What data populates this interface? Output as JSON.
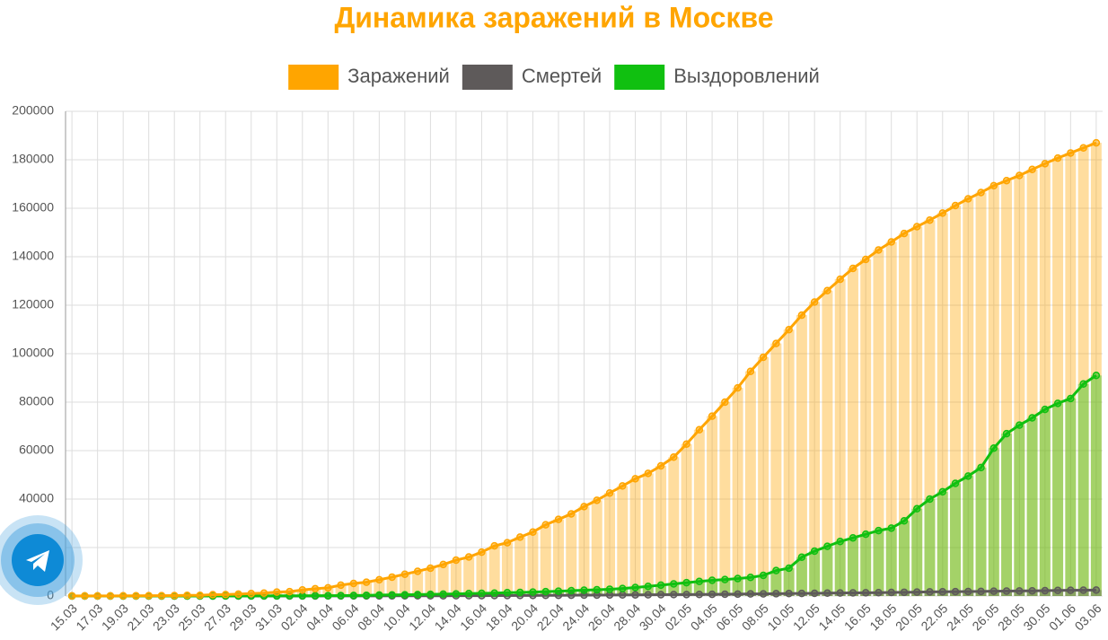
{
  "chart_data": {
    "type": "bar-line",
    "title": "Динамика заражений в Москве",
    "categories": [
      "15.03",
      null,
      "17.03",
      null,
      "19.03",
      null,
      "21.03",
      null,
      "23.03",
      null,
      "25.03",
      null,
      "27.03",
      null,
      "29.03",
      null,
      "31.03",
      null,
      "02.04",
      null,
      "04.04",
      null,
      "06.04",
      null,
      "08.04",
      null,
      "10.04",
      null,
      "12.04",
      null,
      "14.04",
      null,
      "16.04",
      null,
      "18.04",
      null,
      "20.04",
      null,
      "22.04",
      null,
      "24.04",
      null,
      "26.04",
      null,
      "28.04",
      null,
      "30.04",
      null,
      "02.05",
      null,
      "04.05",
      null,
      "06.05",
      null,
      "08.05",
      null,
      "10.05",
      null,
      "12.05",
      null,
      "14.05",
      null,
      "16.05",
      null,
      "18.05",
      null,
      "20.05",
      null,
      "22.05",
      null,
      "24.05",
      null,
      "26.05",
      null,
      "28.05",
      null,
      "30.05",
      null,
      "01.06",
      null,
      "03.06"
    ],
    "series": [
      {
        "name": "Заражений",
        "color": "#ffa500",
        "values": [
          30,
          40,
          50,
          60,
          80,
          100,
          140,
          140,
          190,
          260,
          290,
          550,
          600,
          800,
          1000,
          1200,
          1600,
          1800,
          2500,
          3000,
          3400,
          4500,
          5200,
          5700,
          6700,
          7800,
          9000,
          10200,
          11500,
          13000,
          14800,
          16100,
          18100,
          20700,
          22000,
          24300,
          26400,
          29400,
          31600,
          33900,
          36900,
          39500,
          42500,
          45400,
          48400,
          50600,
          53700,
          57300,
          62700,
          68600,
          74200,
          80000,
          85900,
          92700,
          98500,
          104200,
          109900,
          115900,
          121300,
          126000,
          130700,
          135200,
          138900,
          142800,
          146100,
          149600,
          152400,
          155100,
          158000,
          161100,
          163900,
          166500,
          169300,
          171400,
          173500,
          176000,
          178400,
          180700,
          182800,
          184900,
          187000
        ]
      },
      {
        "name": "Смертей",
        "color": "#5e5a5a",
        "values": [
          0,
          0,
          0,
          0,
          0,
          0,
          0,
          0,
          0,
          0,
          0,
          0,
          0,
          0,
          10,
          10,
          10,
          10,
          20,
          20,
          30,
          30,
          40,
          50,
          60,
          70,
          80,
          100,
          100,
          100,
          120,
          130,
          150,
          170,
          200,
          220,
          250,
          270,
          300,
          330,
          360,
          390,
          420,
          450,
          480,
          510,
          550,
          600,
          620,
          650,
          700,
          750,
          800,
          860,
          900,
          950,
          1000,
          1060,
          1120,
          1200,
          1230,
          1300,
          1360,
          1400,
          1500,
          1550,
          1600,
          1700,
          1750,
          1800,
          1850,
          1900,
          2000,
          2050,
          2100,
          2150,
          2200,
          2300,
          2350,
          2400,
          2450
        ]
      },
      {
        "name": "Выздоровлений",
        "color": "#10c010",
        "values": [
          0,
          0,
          0,
          0,
          0,
          0,
          10,
          10,
          10,
          20,
          20,
          20,
          30,
          40,
          50,
          60,
          70,
          80,
          100,
          120,
          150,
          200,
          250,
          300,
          400,
          450,
          500,
          600,
          700,
          800,
          900,
          1000,
          1100,
          1200,
          1400,
          1500,
          1600,
          1800,
          2000,
          2200,
          2400,
          2600,
          2800,
          3100,
          3500,
          4000,
          4500,
          5000,
          5500,
          6000,
          6500,
          6800,
          7200,
          7700,
          8500,
          10500,
          11500,
          16000,
          18500,
          20500,
          22500,
          24000,
          25500,
          27000,
          28000,
          31000,
          36000,
          40000,
          43000,
          46500,
          49500,
          53000,
          61000,
          67000,
          70500,
          73500,
          77000,
          79500,
          81500,
          87500,
          91000
        ]
      }
    ],
    "ylim": [
      0,
      200000
    ],
    "yticks": [
      0,
      20000,
      40000,
      60000,
      80000,
      100000,
      120000,
      140000,
      160000,
      180000,
      200000
    ],
    "grid": true
  }
}
